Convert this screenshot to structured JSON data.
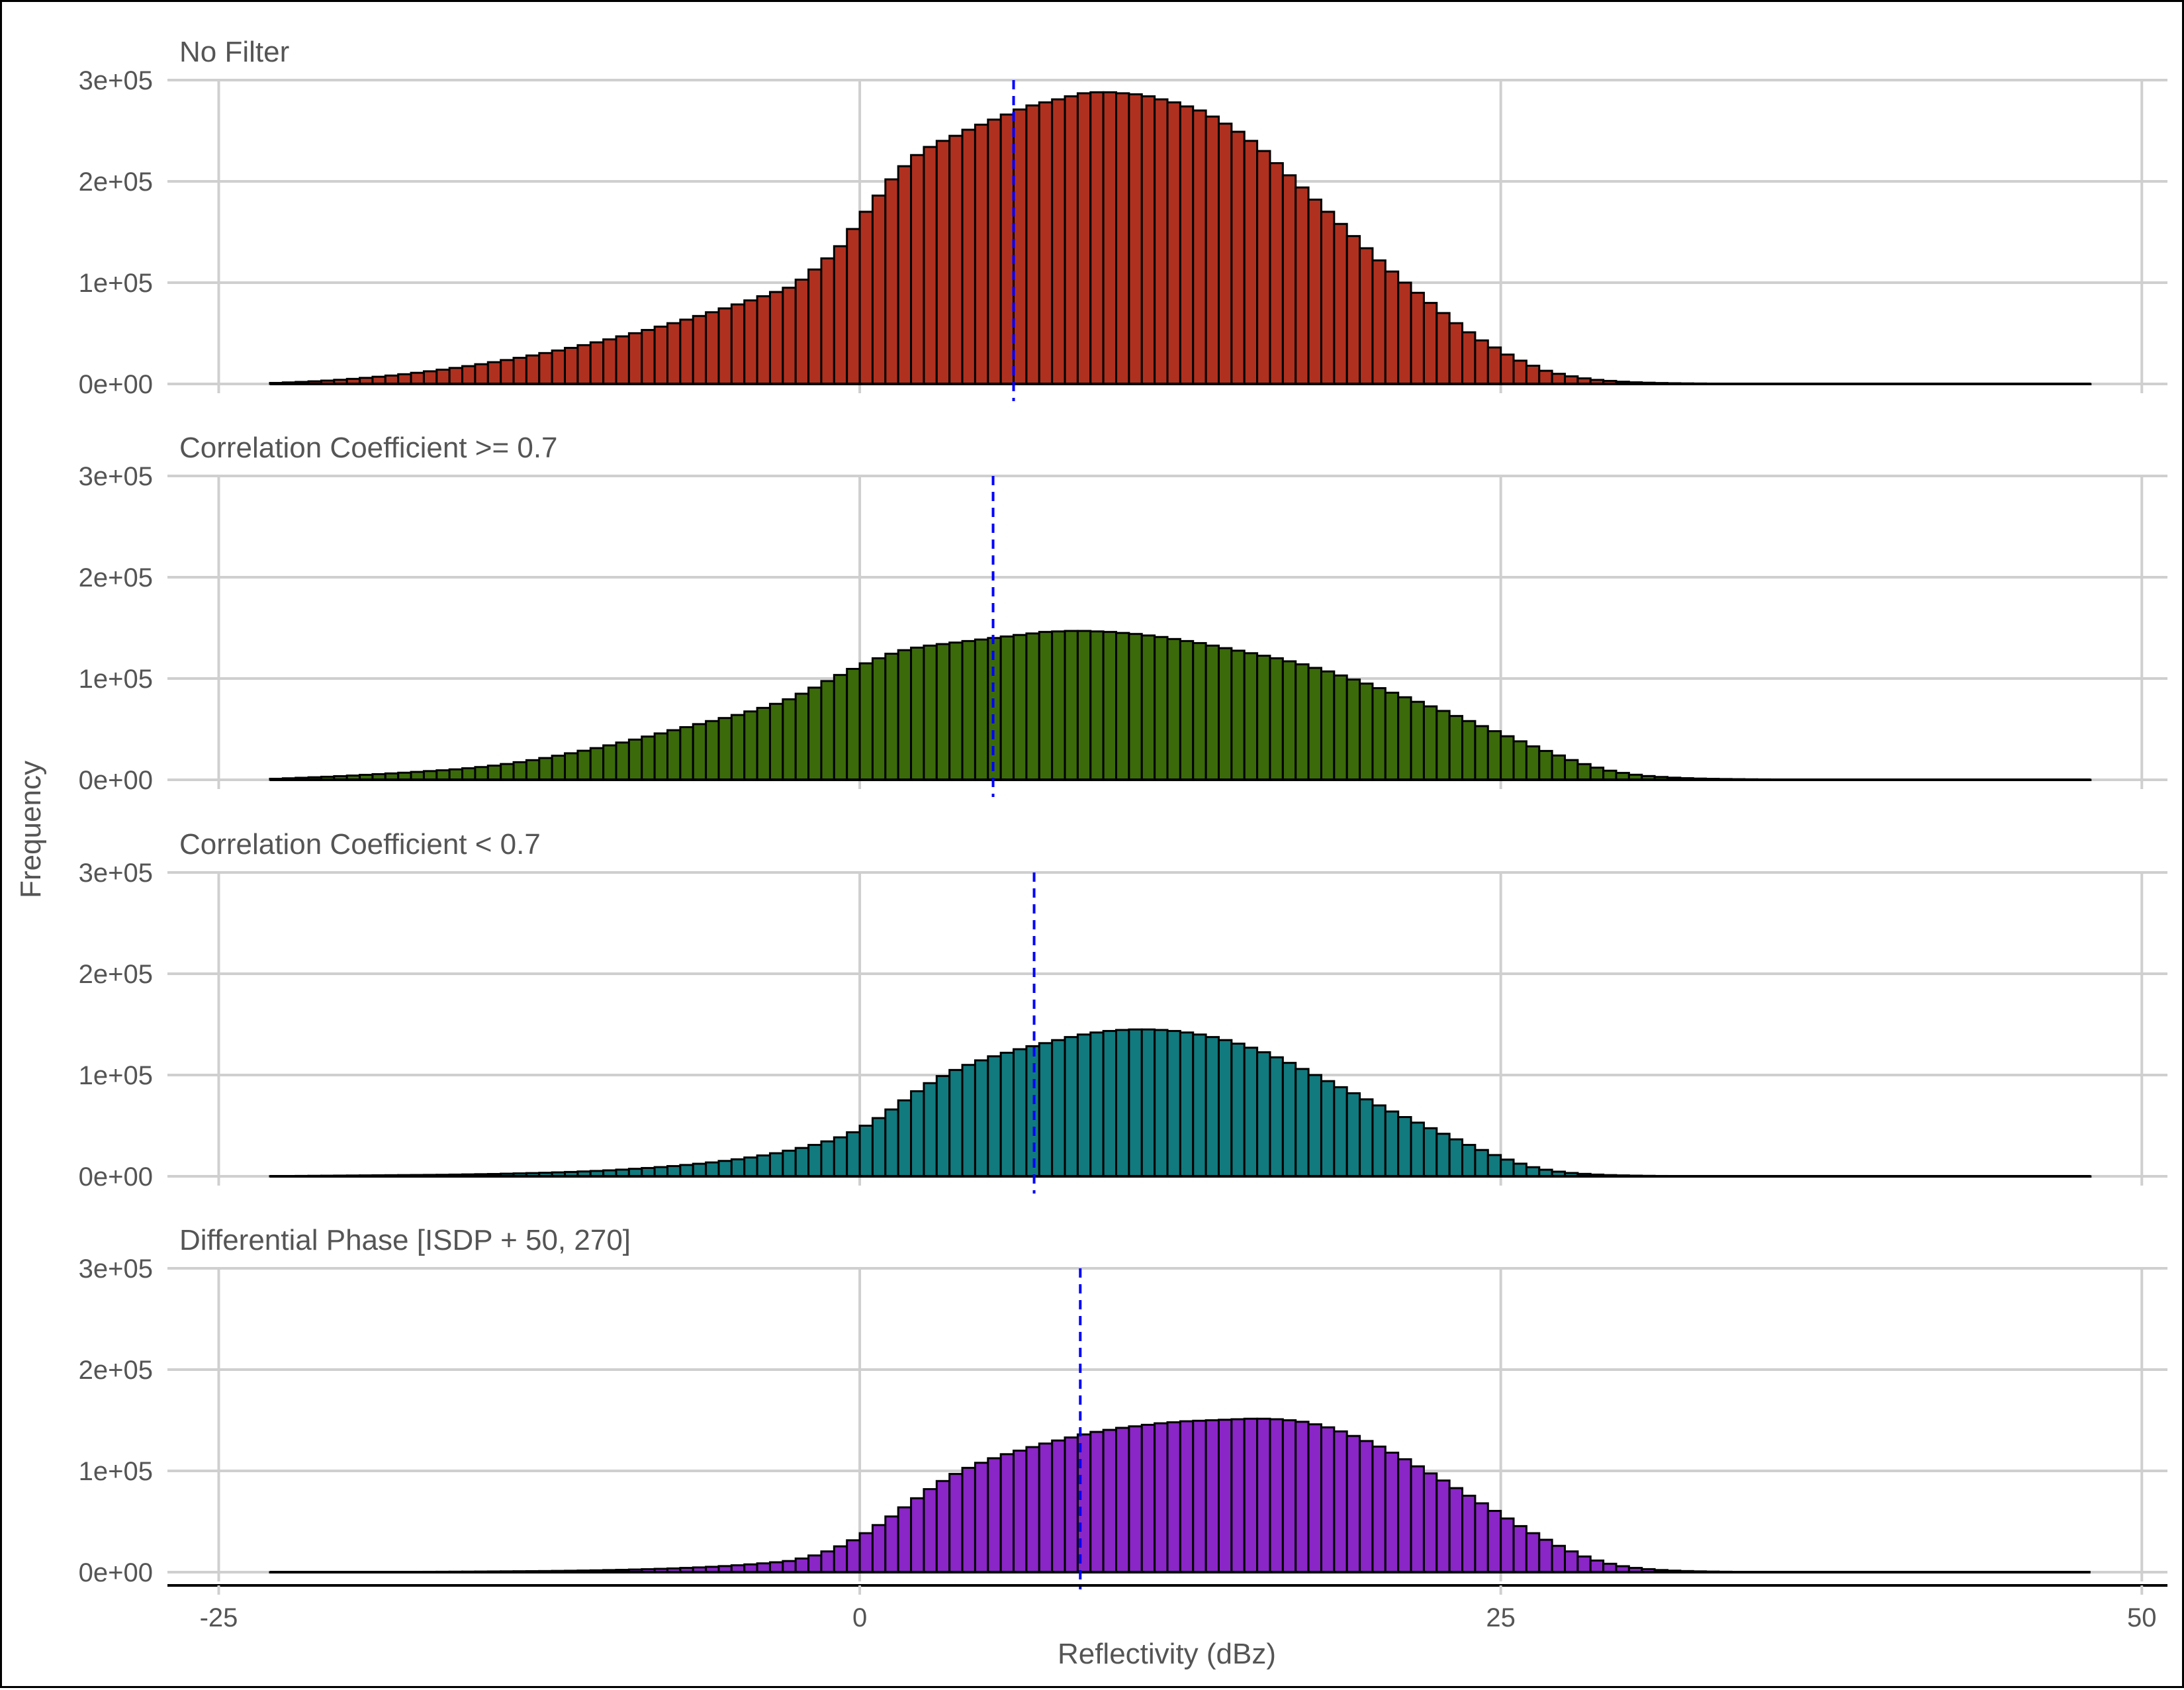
{
  "chart_data": {
    "type": "bar",
    "xlabel": "Reflectivity (dBz)",
    "ylabel": "Frequency",
    "xlim": [
      -27,
      51
    ],
    "ylim": [
      0,
      300000
    ],
    "x_ticks": [
      -25,
      0,
      25,
      50
    ],
    "x_tick_labels": [
      "-25",
      "0",
      "25",
      "50"
    ],
    "y_ticks": [
      0,
      100000,
      200000,
      300000
    ],
    "y_tick_labels": [
      "0e+00",
      "1e+05",
      "2e+05",
      "3e+05"
    ],
    "bin_width": 0.5,
    "x_start": -23,
    "x_end": 48,
    "grid": true,
    "legend": "none",
    "bar_outline_color": "#000000",
    "mean_line_color": "#0000ff",
    "panels": [
      {
        "title": "No Filter",
        "fill": "#b0301f",
        "mean": 6,
        "values": [
          1000,
          1500,
          2000,
          2600,
          3300,
          4100,
          5000,
          6000,
          7100,
          8300,
          9600,
          11000,
          12500,
          14100,
          15800,
          17600,
          19500,
          21500,
          23600,
          25800,
          28100,
          30500,
          33000,
          35600,
          38300,
          41100,
          44000,
          47000,
          50100,
          53300,
          56600,
          60000,
          63500,
          67100,
          70800,
          74600,
          78500,
          82500,
          86600,
          90800,
          95000,
          103000,
          113000,
          124000,
          136000,
          153000,
          170000,
          186000,
          202000,
          215000,
          226000,
          234000,
          240000,
          245000,
          251000,
          256000,
          261000,
          266000,
          271000,
          275000,
          278000,
          281000,
          284000,
          287000,
          288000,
          288000,
          287000,
          286000,
          284000,
          281000,
          278000,
          274000,
          270000,
          264000,
          257000,
          249000,
          240000,
          230000,
          218000,
          206000,
          194000,
          182000,
          170000,
          158000,
          146000,
          134000,
          122000,
          111000,
          100000,
          90000,
          80000,
          70000,
          60000,
          51000,
          43000,
          36000,
          29000,
          23000,
          18000,
          13000,
          10000,
          7500,
          5500,
          4000,
          3000,
          2200,
          1600,
          1200,
          900,
          700,
          550,
          430,
          340,
          270,
          210,
          170,
          140,
          110,
          90,
          75,
          60,
          50,
          40,
          35,
          30,
          25,
          20,
          18,
          15,
          12,
          10,
          9,
          8,
          7,
          6,
          5,
          4,
          4,
          3,
          3,
          2,
          2
        ]
      },
      {
        "title": "Correlation Coefficient >= 0.7",
        "fill": "#3b6a0a",
        "mean": 5.2,
        "values": [
          1000,
          1500,
          2000,
          2500,
          3000,
          3600,
          4200,
          4900,
          5600,
          6300,
          7000,
          7800,
          8600,
          9400,
          10300,
          11400,
          12600,
          14000,
          15600,
          17400,
          19400,
          21500,
          23800,
          26200,
          28700,
          31300,
          34000,
          36800,
          39700,
          42700,
          45800,
          49000,
          52000,
          55000,
          58000,
          61000,
          64000,
          67500,
          71000,
          75000,
          79500,
          85000,
          91000,
          97500,
          103500,
          109500,
          115000,
          120000,
          124500,
          128000,
          130500,
          132500,
          134000,
          135500,
          137000,
          138500,
          140000,
          141500,
          143000,
          144500,
          146000,
          146500,
          147000,
          147000,
          146500,
          146000,
          145000,
          144000,
          142500,
          141000,
          139000,
          137000,
          135000,
          132500,
          130000,
          127500,
          125000,
          122500,
          120000,
          117000,
          114000,
          110500,
          107000,
          103000,
          99000,
          95000,
          90500,
          86000,
          81500,
          77000,
          72500,
          68000,
          63000,
          58000,
          53000,
          48000,
          43000,
          38000,
          33000,
          28500,
          24000,
          19500,
          15500,
          12000,
          9000,
          6800,
          5000,
          3700,
          2800,
          2100,
          1600,
          1200,
          950,
          750,
          600,
          480,
          380,
          300,
          240,
          190,
          150,
          120,
          100,
          80,
          65,
          55,
          45,
          38,
          32,
          27,
          22,
          18,
          15,
          12,
          10,
          8,
          7,
          6,
          5,
          4,
          3,
          3
        ]
      },
      {
        "title": "Correlation Coefficient < 0.7",
        "fill": "#117a7e",
        "mean": 6.8,
        "values": [
          200,
          300,
          400,
          500,
          600,
          700,
          800,
          900,
          1000,
          1100,
          1200,
          1300,
          1400,
          1500,
          1700,
          1900,
          2100,
          2300,
          2600,
          2900,
          3200,
          3500,
          3900,
          4300,
          4800,
          5300,
          5900,
          6600,
          7400,
          8200,
          9100,
          10100,
          11200,
          12400,
          13700,
          15200,
          16800,
          18600,
          20600,
          22800,
          25300,
          28000,
          31000,
          34500,
          38500,
          43500,
          50000,
          57500,
          66000,
          75000,
          84000,
          92000,
          99000,
          105000,
          110000,
          114500,
          118500,
          122000,
          125500,
          128500,
          131500,
          134500,
          137500,
          140000,
          142000,
          143500,
          144500,
          145000,
          145000,
          144500,
          143500,
          142000,
          140000,
          137500,
          134500,
          131000,
          127000,
          122500,
          117500,
          112000,
          106000,
          100000,
          94000,
          88000,
          82000,
          76000,
          70000,
          64000,
          58500,
          53000,
          47500,
          42000,
          36500,
          31000,
          26000,
          21000,
          16500,
          12500,
          9000,
          6500,
          4600,
          3300,
          2400,
          1700,
          1200,
          900,
          650,
          480,
          350,
          260,
          200,
          150,
          110,
          85,
          65,
          50,
          40,
          30,
          25,
          20,
          16,
          13,
          10,
          8,
          7,
          6,
          5,
          4,
          3,
          3,
          2,
          2,
          2,
          1,
          1,
          1,
          1,
          1,
          1,
          1,
          1,
          1
        ]
      },
      {
        "title": "Differential Phase [ISDP + 50, 270]",
        "fill": "#8a25c7",
        "mean": 8.6,
        "values": [
          50,
          60,
          70,
          80,
          100,
          120,
          140,
          160,
          190,
          220,
          260,
          300,
          350,
          400,
          460,
          530,
          610,
          700,
          800,
          900,
          1000,
          1100,
          1250,
          1400,
          1600,
          1800,
          2050,
          2300,
          2600,
          2950,
          3300,
          3700,
          4200,
          4700,
          5300,
          6000,
          6800,
          7700,
          8700,
          9800,
          11000,
          13500,
          16500,
          20500,
          25500,
          31500,
          38500,
          46500,
          55000,
          64000,
          73000,
          82000,
          90000,
          97000,
          103000,
          108000,
          112500,
          116500,
          120000,
          123500,
          127000,
          130000,
          133000,
          136000,
          138500,
          140500,
          142500,
          144000,
          145500,
          147000,
          148000,
          149000,
          149500,
          150000,
          150500,
          151000,
          151500,
          151500,
          151000,
          150000,
          148500,
          146000,
          143000,
          139000,
          134500,
          129500,
          124000,
          118000,
          111500,
          104500,
          97500,
          90500,
          83000,
          75500,
          68000,
          60500,
          53000,
          45500,
          38500,
          32000,
          26000,
          20500,
          15500,
          11500,
          8300,
          5900,
          4200,
          3000,
          2100,
          1500,
          1100,
          800,
          580,
          420,
          310,
          230,
          170,
          130,
          100,
          80,
          60,
          50,
          40,
          32,
          26,
          21,
          17,
          14,
          11,
          9,
          7,
          6,
          5,
          4,
          3,
          3,
          2,
          2,
          2,
          1
        ]
      }
    ]
  }
}
